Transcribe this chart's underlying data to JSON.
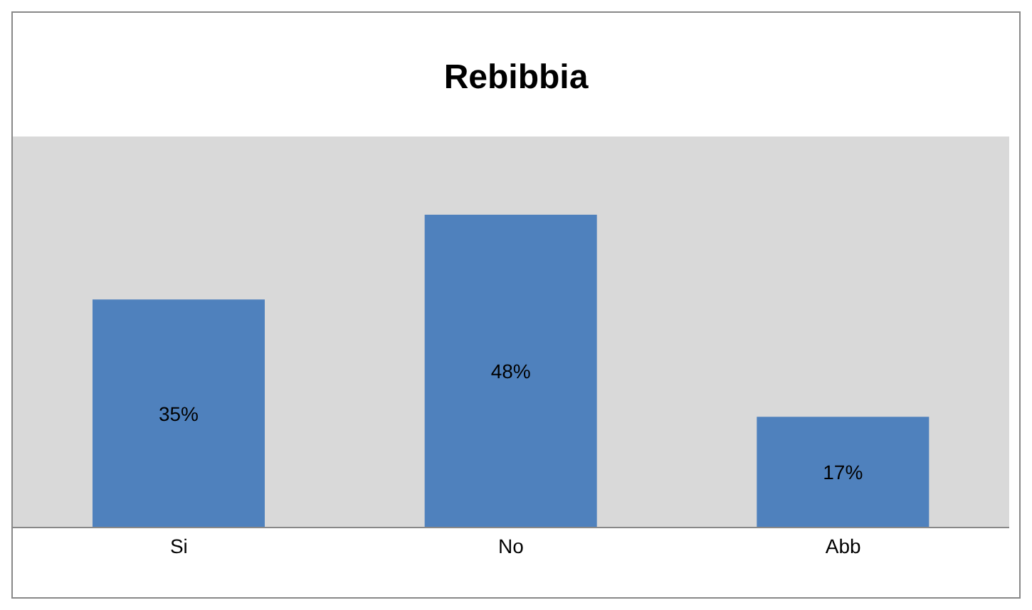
{
  "chart_data": {
    "type": "bar",
    "title": "Rebibbia",
    "categories": [
      "Si",
      "No",
      "Abb"
    ],
    "values": [
      35,
      48,
      17
    ],
    "color": "#4f81bd",
    "value_labels": [
      "35%",
      "48%",
      "17%"
    ],
    "ylim": [
      0,
      60
    ],
    "tick_labels": "x",
    "grid": false
  }
}
